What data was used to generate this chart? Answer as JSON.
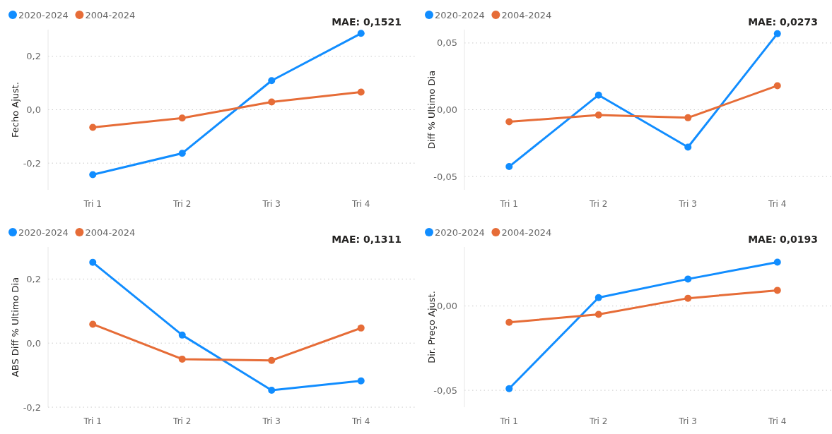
{
  "chart_data": [
    {
      "type": "line",
      "ylabel": "Fecho Ajust.",
      "annotations": [
        "MAE: 0,1521"
      ],
      "categories": [
        "Tri 1",
        "Tri 2",
        "Tri 3",
        "Tri 4"
      ],
      "ylim": [
        -0.3,
        0.3
      ],
      "yticks": [
        {
          "value": -0.2,
          "label": "-0,2"
        },
        {
          "value": 0,
          "label": "0,0"
        },
        {
          "value": 0.2,
          "label": "0,2"
        }
      ],
      "grid": "y",
      "legend": "top left",
      "marker": "circle",
      "line_style": "solid",
      "series": [
        {
          "name": "2020-2024",
          "color": "#118dff",
          "values": [
            -0.243,
            -0.163,
            0.109,
            0.286
          ]
        },
        {
          "name": "2004-2024",
          "color": "#e66c37",
          "values": [
            -0.066,
            -0.031,
            0.029,
            0.066
          ]
        }
      ]
    },
    {
      "type": "line",
      "ylabel": "Diff % Ultimo Dia",
      "annotations": [
        "MAE: 0,0273"
      ],
      "categories": [
        "Tri 1",
        "Tri 2",
        "Tri 3",
        "Tri 4"
      ],
      "ylim": [
        -0.06,
        0.06
      ],
      "yticks": [
        {
          "value": -0.05,
          "label": "-0,05"
        },
        {
          "value": 0,
          "label": "0,00"
        },
        {
          "value": 0.05,
          "label": "0,05"
        }
      ],
      "grid": "y",
      "legend": "top left",
      "marker": "circle",
      "line_style": "solid",
      "series": [
        {
          "name": "2020-2024",
          "color": "#118dff",
          "values": [
            -0.0426,
            0.011,
            -0.028,
            0.057
          ]
        },
        {
          "name": "2004-2024",
          "color": "#e66c37",
          "values": [
            -0.009,
            -0.004,
            -0.006,
            0.018
          ]
        }
      ]
    },
    {
      "type": "line",
      "ylabel": "ABS Diff % Ultimo Dia",
      "annotations": [
        "MAE: 0,1311"
      ],
      "categories": [
        "Tri 1",
        "Tri 2",
        "Tri 3",
        "Tri 4"
      ],
      "ylim": [
        -0.2,
        0.3
      ],
      "yticks": [
        {
          "value": -0.2,
          "label": "-0,2"
        },
        {
          "value": 0,
          "label": "0,0"
        },
        {
          "value": 0.2,
          "label": "0,2"
        }
      ],
      "grid": "y",
      "legend": "top left",
      "marker": "circle",
      "line_style": "solid",
      "series": [
        {
          "name": "2020-2024",
          "color": "#118dff",
          "values": [
            0.252,
            0.025,
            -0.147,
            -0.118
          ]
        },
        {
          "name": "2004-2024",
          "color": "#e66c37",
          "values": [
            0.059,
            -0.05,
            -0.054,
            0.047
          ]
        }
      ]
    },
    {
      "type": "line",
      "ylabel": "Dir. Preço Ajust.",
      "annotations": [
        "MAE: 0,0193"
      ],
      "categories": [
        "Tri 1",
        "Tri 2",
        "Tri 3",
        "Tri 4"
      ],
      "ylim": [
        -0.06,
        0.035
      ],
      "yticks": [
        {
          "value": -0.05,
          "label": "-0,05"
        },
        {
          "value": 0,
          "label": "0,00"
        }
      ],
      "grid": "y",
      "legend": "top left",
      "marker": "circle",
      "line_style": "solid",
      "series": [
        {
          "name": "2020-2024",
          "color": "#118dff",
          "values": [
            -0.049,
            0.005,
            0.016,
            0.026
          ]
        },
        {
          "name": "2004-2024",
          "color": "#e66c37",
          "values": [
            -0.0097,
            -0.005,
            0.0046,
            0.0093
          ]
        }
      ]
    }
  ]
}
